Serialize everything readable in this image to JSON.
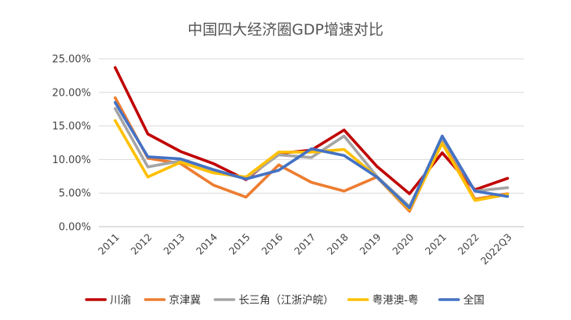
{
  "chart_data": {
    "type": "line",
    "title": "中国四大经济圈GDP增速对比",
    "xlabel": "",
    "ylabel": "",
    "categories": [
      "2011",
      "2012",
      "2013",
      "2014",
      "2015",
      "2016",
      "2017",
      "2018",
      "2019",
      "2020",
      "2021",
      "2022",
      "2022Q3"
    ],
    "ylim": [
      0,
      25
    ],
    "yticks": [
      "0.00%",
      "5.00%",
      "10.00%",
      "15.00%",
      "20.00%",
      "25.00%"
    ],
    "grid": true,
    "legend_position": "bottom",
    "series": [
      {
        "name": "川渝",
        "color": "#c00000",
        "values": [
          23.7,
          13.8,
          11.2,
          9.4,
          7.0,
          10.9,
          11.4,
          14.4,
          9.0,
          4.9,
          11.0,
          5.5,
          7.2
        ]
      },
      {
        "name": "京津冀",
        "color": "#ed7d31",
        "values": [
          19.2,
          10.2,
          9.4,
          6.2,
          4.4,
          9.2,
          6.6,
          5.3,
          7.4,
          2.3,
          12.8,
          4.1,
          4.9
        ]
      },
      {
        "name": "长三角（江浙沪皖）",
        "color": "#a5a5a5",
        "values": [
          17.6,
          8.9,
          9.8,
          8.2,
          7.2,
          10.7,
          10.3,
          13.5,
          7.5,
          3.0,
          13.2,
          5.3,
          5.8
        ]
      },
      {
        "name": "粤港澳-粤",
        "color": "#ffc000",
        "values": [
          15.8,
          7.4,
          9.6,
          8.0,
          7.4,
          11.1,
          11.1,
          11.5,
          7.4,
          2.6,
          12.4,
          3.9,
          4.8
        ]
      },
      {
        "name": "全国",
        "color": "#4472c4",
        "values": [
          18.5,
          10.4,
          10.1,
          8.5,
          7.1,
          8.4,
          11.6,
          10.6,
          7.4,
          2.8,
          13.5,
          5.3,
          4.5
        ]
      }
    ]
  }
}
